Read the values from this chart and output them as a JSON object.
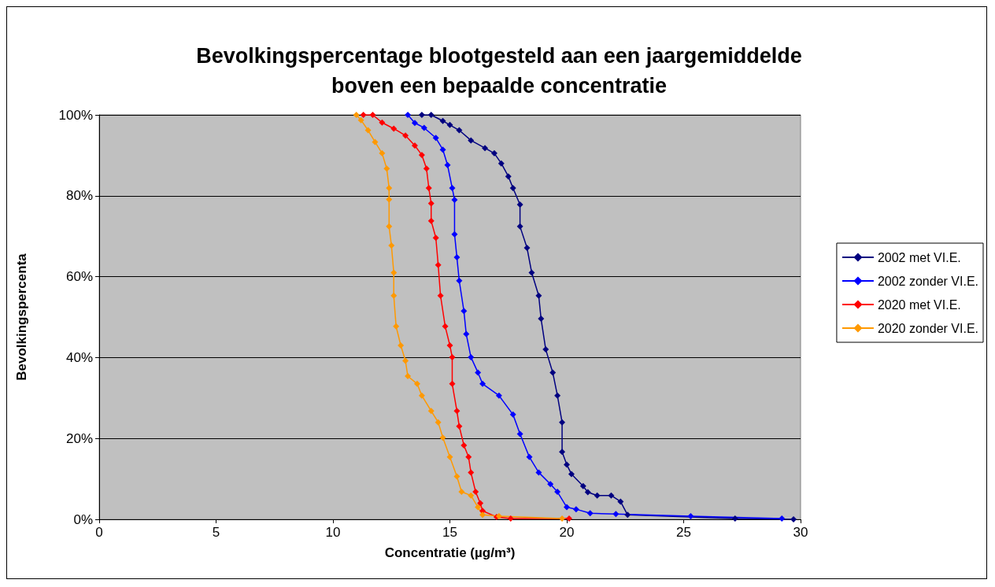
{
  "chart_data": {
    "type": "line",
    "title": "Bevolkingspercentage blootgesteld aan een jaargemiddelde\nboven een bepaalde concentratie",
    "xlabel": "Concentratie (µg/m³)",
    "ylabel": "Bevolkingspercenta",
    "xlim": [
      0,
      30
    ],
    "xticks": [
      0,
      5,
      10,
      15,
      20,
      25,
      30
    ],
    "ylim": [
      0,
      100
    ],
    "yticks": [
      {
        "value": 0,
        "label": "0%"
      },
      {
        "value": 20,
        "label": "20%"
      },
      {
        "value": 40,
        "label": "40%"
      },
      {
        "value": 60,
        "label": "60%"
      },
      {
        "value": 80,
        "label": "80%"
      },
      {
        "value": 100,
        "label": "100%"
      }
    ],
    "grid": "y",
    "legend": "right",
    "marker": "diamond",
    "line_style": "solid",
    "series": [
      {
        "name": "2002 met VI.E.",
        "color": "#000080",
        "x": [
          13.8,
          14.2,
          14.7,
          15.0,
          15.4,
          15.9,
          16.5,
          16.9,
          17.2,
          17.5,
          17.7,
          18.0,
          18.0,
          18.3,
          18.5,
          18.8,
          18.9,
          19.1,
          19.4,
          19.6,
          19.8,
          19.8,
          20.0,
          20.2,
          20.7,
          20.9,
          21.3,
          21.9,
          22.3,
          22.6,
          27.2,
          29.7
        ],
        "values": [
          100,
          100,
          98.5,
          97.5,
          96.2,
          93.7,
          91.8,
          90.5,
          88,
          84.8,
          81.9,
          77.8,
          72.4,
          67.1,
          61,
          55.3,
          49.6,
          42,
          36.3,
          30.6,
          24,
          16.7,
          13.5,
          11.2,
          8.2,
          6.7,
          5.9,
          5.9,
          4.4,
          1.1,
          0.2,
          0
        ]
      },
      {
        "name": "2002 zonder VI.E.",
        "color": "#0000ff",
        "x": [
          13.2,
          13.5,
          13.9,
          14.4,
          14.7,
          14.9,
          15.1,
          15.2,
          15.2,
          15.3,
          15.4,
          15.6,
          15.7,
          15.9,
          16.2,
          16.4,
          17.1,
          17.7,
          18.0,
          18.4,
          18.8,
          19.3,
          19.6,
          20.0,
          20.4,
          21.0,
          22.1,
          25.3,
          29.2
        ],
        "values": [
          100,
          98,
          96.8,
          94.3,
          91.4,
          87.6,
          81.9,
          79,
          70.5,
          64.8,
          59,
          51.5,
          45.8,
          40.1,
          36.3,
          33.5,
          30.6,
          25.9,
          21.1,
          15.4,
          11.6,
          8.7,
          6.8,
          3,
          2.5,
          1.5,
          1.3,
          0.8,
          0.2
        ]
      },
      {
        "name": "2020 met VI.E.",
        "color": "#ff0000",
        "x": [
          11.3,
          11.7,
          12.1,
          12.6,
          13.1,
          13.5,
          13.8,
          14.0,
          14.1,
          14.2,
          14.2,
          14.4,
          14.5,
          14.6,
          14.8,
          15.0,
          15.1,
          15.1,
          15.3,
          15.4,
          15.6,
          15.8,
          15.9,
          16.1,
          16.3,
          16.4,
          17.0,
          17.6,
          20.1
        ],
        "values": [
          100,
          100,
          98.1,
          96.6,
          94.9,
          92.4,
          90.1,
          86.7,
          81.9,
          78.1,
          73.8,
          69.6,
          62.9,
          55.3,
          47.7,
          43,
          40.1,
          33.5,
          26.8,
          23,
          18.3,
          15.4,
          11.6,
          6.8,
          4,
          2.1,
          0.6,
          0.2,
          0.2
        ]
      },
      {
        "name": "2020 zonder VI.E.",
        "color": "#ff9900",
        "x": [
          11.0,
          11.2,
          11.5,
          11.8,
          12.1,
          12.3,
          12.4,
          12.4,
          12.4,
          12.5,
          12.6,
          12.6,
          12.7,
          12.9,
          13.1,
          13.2,
          13.6,
          13.8,
          14.2,
          14.5,
          14.7,
          15.0,
          15.3,
          15.5,
          15.9,
          16.2,
          16.4,
          17.1,
          19.8
        ],
        "values": [
          100,
          98.7,
          96.2,
          93.3,
          90.5,
          86.7,
          81.9,
          79.1,
          72.4,
          67.7,
          61,
          55.3,
          47.7,
          43,
          39.2,
          35.4,
          33.5,
          30.6,
          26.8,
          24,
          20.2,
          15.4,
          10.6,
          6.8,
          5.9,
          3,
          1.1,
          0.8,
          0.2
        ]
      }
    ]
  }
}
